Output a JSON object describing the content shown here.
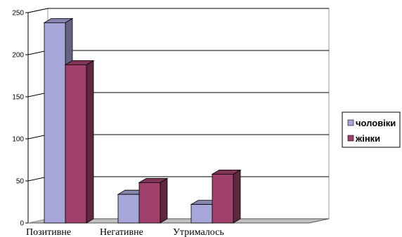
{
  "chart_data": {
    "type": "bar",
    "categories": [
      "Позитивне",
      "Негативне",
      "Утрималось"
    ],
    "series": [
      {
        "name": "чоловіки",
        "values": [
          238,
          34,
          22
        ],
        "color": "#a6a6d8"
      },
      {
        "name": "жінки",
        "values": [
          188,
          48,
          58
        ],
        "color": "#a0416b"
      }
    ],
    "ylim": [
      0,
      250
    ],
    "yticks": [
      0,
      50,
      100,
      150,
      200,
      250
    ],
    "grid": true,
    "three_d": true,
    "legend_position": "right"
  }
}
